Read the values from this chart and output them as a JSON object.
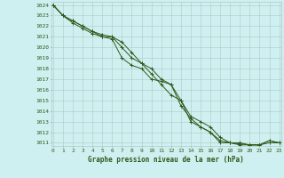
{
  "x": [
    0,
    1,
    2,
    3,
    4,
    5,
    6,
    7,
    8,
    9,
    10,
    11,
    12,
    13,
    14,
    15,
    16,
    17,
    18,
    19,
    20,
    21,
    22,
    23
  ],
  "line1": [
    1024.0,
    1023.0,
    1022.5,
    1022.0,
    1021.5,
    1021.0,
    1021.0,
    1020.5,
    1019.5,
    1018.5,
    1018.0,
    1017.0,
    1016.5,
    1015.0,
    1013.5,
    1013.0,
    1012.5,
    1011.5,
    1011.0,
    1011.0,
    1010.8,
    1010.8,
    1011.0,
    1011.0
  ],
  "line2": [
    1024.0,
    1023.0,
    1022.5,
    1022.0,
    1021.5,
    1021.2,
    1021.0,
    1020.0,
    1019.0,
    1018.5,
    1017.5,
    1016.5,
    1015.5,
    1015.0,
    1013.0,
    1012.5,
    1012.0,
    1011.2,
    1011.0,
    1010.9,
    1010.8,
    1010.8,
    1011.2,
    1011.0
  ],
  "line3": [
    1024.0,
    1023.0,
    1022.3,
    1021.8,
    1021.3,
    1021.0,
    1020.8,
    1019.0,
    1018.3,
    1018.0,
    1017.0,
    1016.8,
    1016.5,
    1014.5,
    1013.3,
    1012.5,
    1012.0,
    1011.0,
    1011.0,
    1010.8,
    1010.8,
    1010.8,
    1011.2,
    1011.0
  ],
  "line_color": "#2d5a1b",
  "bg_color": "#cff0f0",
  "grid_color": "#b0c8c8",
  "xlabel": "Graphe pression niveau de la mer (hPa)",
  "ylim_min": 1011,
  "ylim_max": 1024,
  "xlim_min": 0,
  "xlim_max": 23,
  "marker": "+",
  "markersize": 3,
  "linewidth": 0.7,
  "label_fontsize": 5.5,
  "tick_fontsize": 4.5
}
